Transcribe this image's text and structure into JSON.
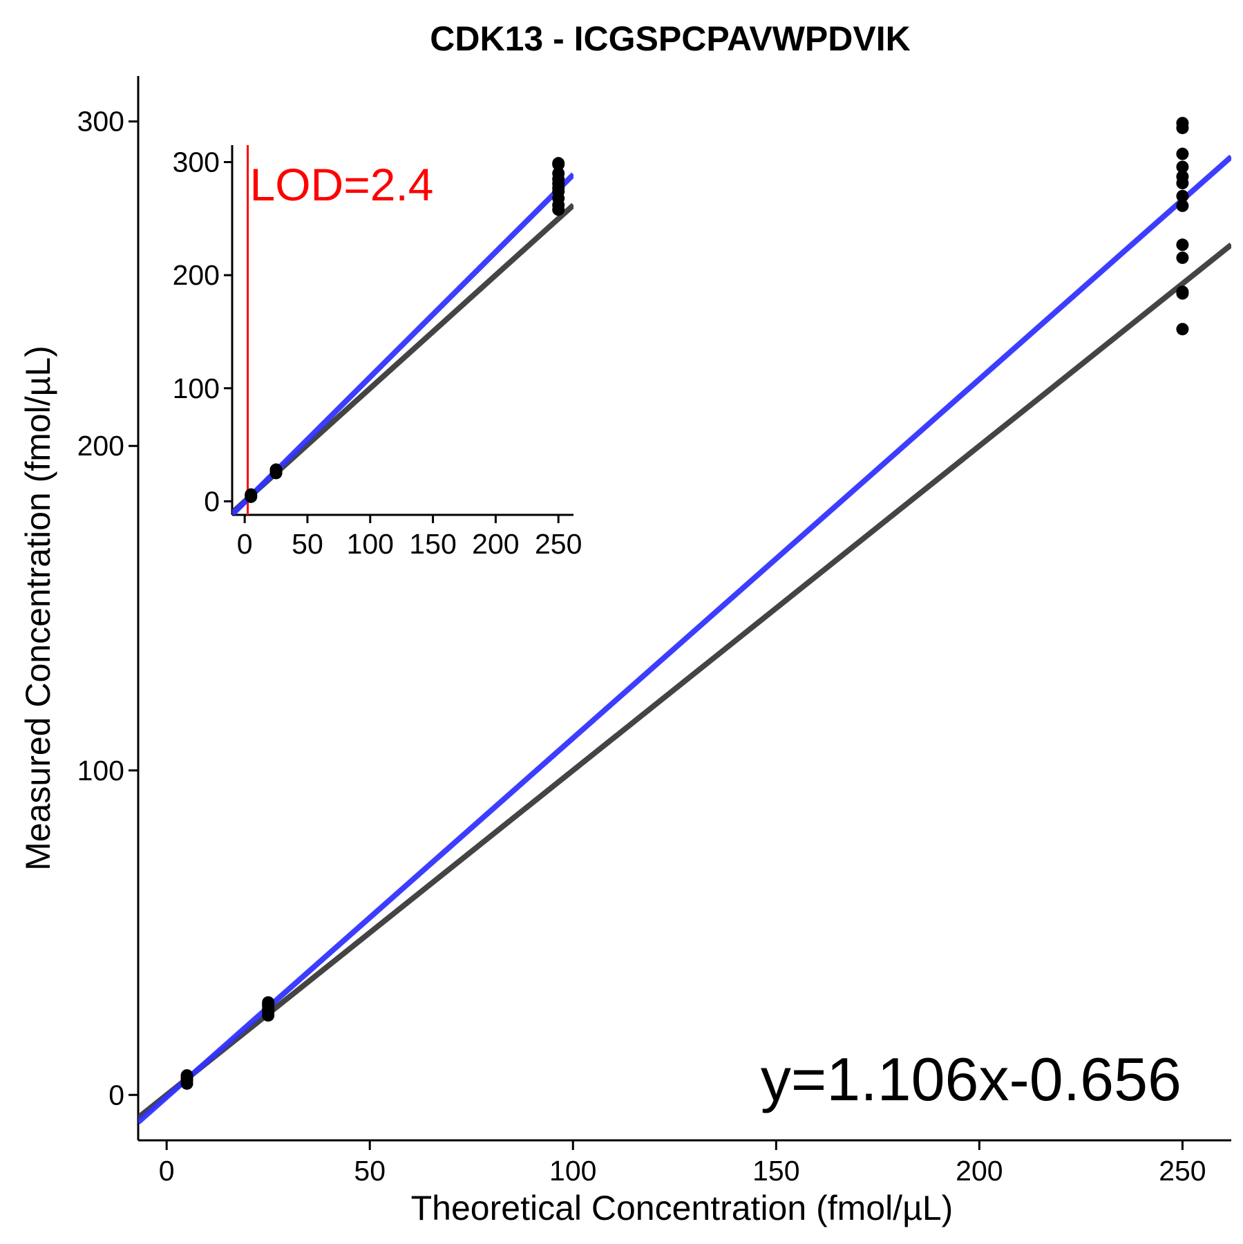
{
  "chart_data": [
    {
      "id": "main",
      "type": "scatter",
      "title": "CDK13 - ICGSPCPAVWPDVIK",
      "xlabel": "Theoretical Concentration (fmol/µL)",
      "ylabel": "Measured Concentration (fmol/µL)",
      "xlim": [
        -7,
        262
      ],
      "ylim": [
        -14,
        314
      ],
      "xticks": [
        0,
        50,
        100,
        150,
        200,
        250
      ],
      "xtick_labels": [
        "0",
        "50",
        "100",
        "150",
        "200",
        "250"
      ],
      "yticks": [
        0,
        100,
        200,
        300
      ],
      "ytick_labels": [
        "0",
        "100",
        "200",
        "300"
      ],
      "grid": false,
      "points": [
        {
          "x": 5,
          "y": 3.5
        },
        {
          "x": 5,
          "y": 4.5
        },
        {
          "x": 5,
          "y": 5
        },
        {
          "x": 5,
          "y": 5.5
        },
        {
          "x": 5,
          "y": 6
        },
        {
          "x": 25,
          "y": 24.5
        },
        {
          "x": 25,
          "y": 25.5
        },
        {
          "x": 25,
          "y": 26.5
        },
        {
          "x": 25,
          "y": 27.5
        },
        {
          "x": 25,
          "y": 28
        },
        {
          "x": 25,
          "y": 28.5
        },
        {
          "x": 250,
          "y": 298
        },
        {
          "x": 250,
          "y": 299.5
        },
        {
          "x": 250,
          "y": 290
        },
        {
          "x": 250,
          "y": 283
        },
        {
          "x": 250,
          "y": 286
        },
        {
          "x": 250,
          "y": 281
        },
        {
          "x": 250,
          "y": 277
        },
        {
          "x": 250,
          "y": 274
        },
        {
          "x": 250,
          "y": 262
        },
        {
          "x": 250,
          "y": 258
        },
        {
          "x": 250,
          "y": 247
        },
        {
          "x": 250,
          "y": 247.5
        },
        {
          "x": 250,
          "y": 236
        }
      ],
      "lines": [
        {
          "role": "fit",
          "color": "#3333ff",
          "slope": 1.106,
          "intercept": -0.656
        },
        {
          "role": "identity",
          "color": "#3a3a3a",
          "slope": 1,
          "intercept": 0
        }
      ],
      "annotations": [
        {
          "text": "y=1.106x-0.656",
          "position": "bottom-right"
        }
      ]
    },
    {
      "id": "inset",
      "type": "scatter",
      "title": "",
      "xlabel": "",
      "ylabel": "",
      "xlim": [
        -10,
        262
      ],
      "ylim": [
        -12,
        315
      ],
      "xticks": [
        0,
        50,
        100,
        150,
        200,
        250
      ],
      "xtick_labels": [
        "0",
        "50",
        "100",
        "150",
        "200",
        "250"
      ],
      "yticks": [
        0,
        100,
        200,
        300
      ],
      "ytick_labels": [
        "0",
        "100",
        "200",
        "300"
      ],
      "grid": false,
      "points": [
        {
          "x": 5,
          "y": 4
        },
        {
          "x": 5,
          "y": 5
        },
        {
          "x": 5,
          "y": 6
        },
        {
          "x": 25,
          "y": 25
        },
        {
          "x": 25,
          "y": 26
        },
        {
          "x": 25,
          "y": 27
        },
        {
          "x": 25,
          "y": 28
        },
        {
          "x": 250,
          "y": 298
        },
        {
          "x": 250,
          "y": 299
        },
        {
          "x": 250,
          "y": 290
        },
        {
          "x": 250,
          "y": 285
        },
        {
          "x": 250,
          "y": 281
        },
        {
          "x": 250,
          "y": 277
        },
        {
          "x": 250,
          "y": 274
        },
        {
          "x": 250,
          "y": 268
        },
        {
          "x": 250,
          "y": 262
        },
        {
          "x": 250,
          "y": 258
        }
      ],
      "lines": [
        {
          "role": "fit",
          "color": "#3333ff",
          "slope": 1.106,
          "intercept": -0.656
        },
        {
          "role": "identity",
          "color": "#3a3a3a",
          "slope": 1,
          "intercept": 0
        }
      ],
      "lod": {
        "value": 2.4,
        "label": "LOD=2.4",
        "color": "#ff0000"
      }
    }
  ]
}
